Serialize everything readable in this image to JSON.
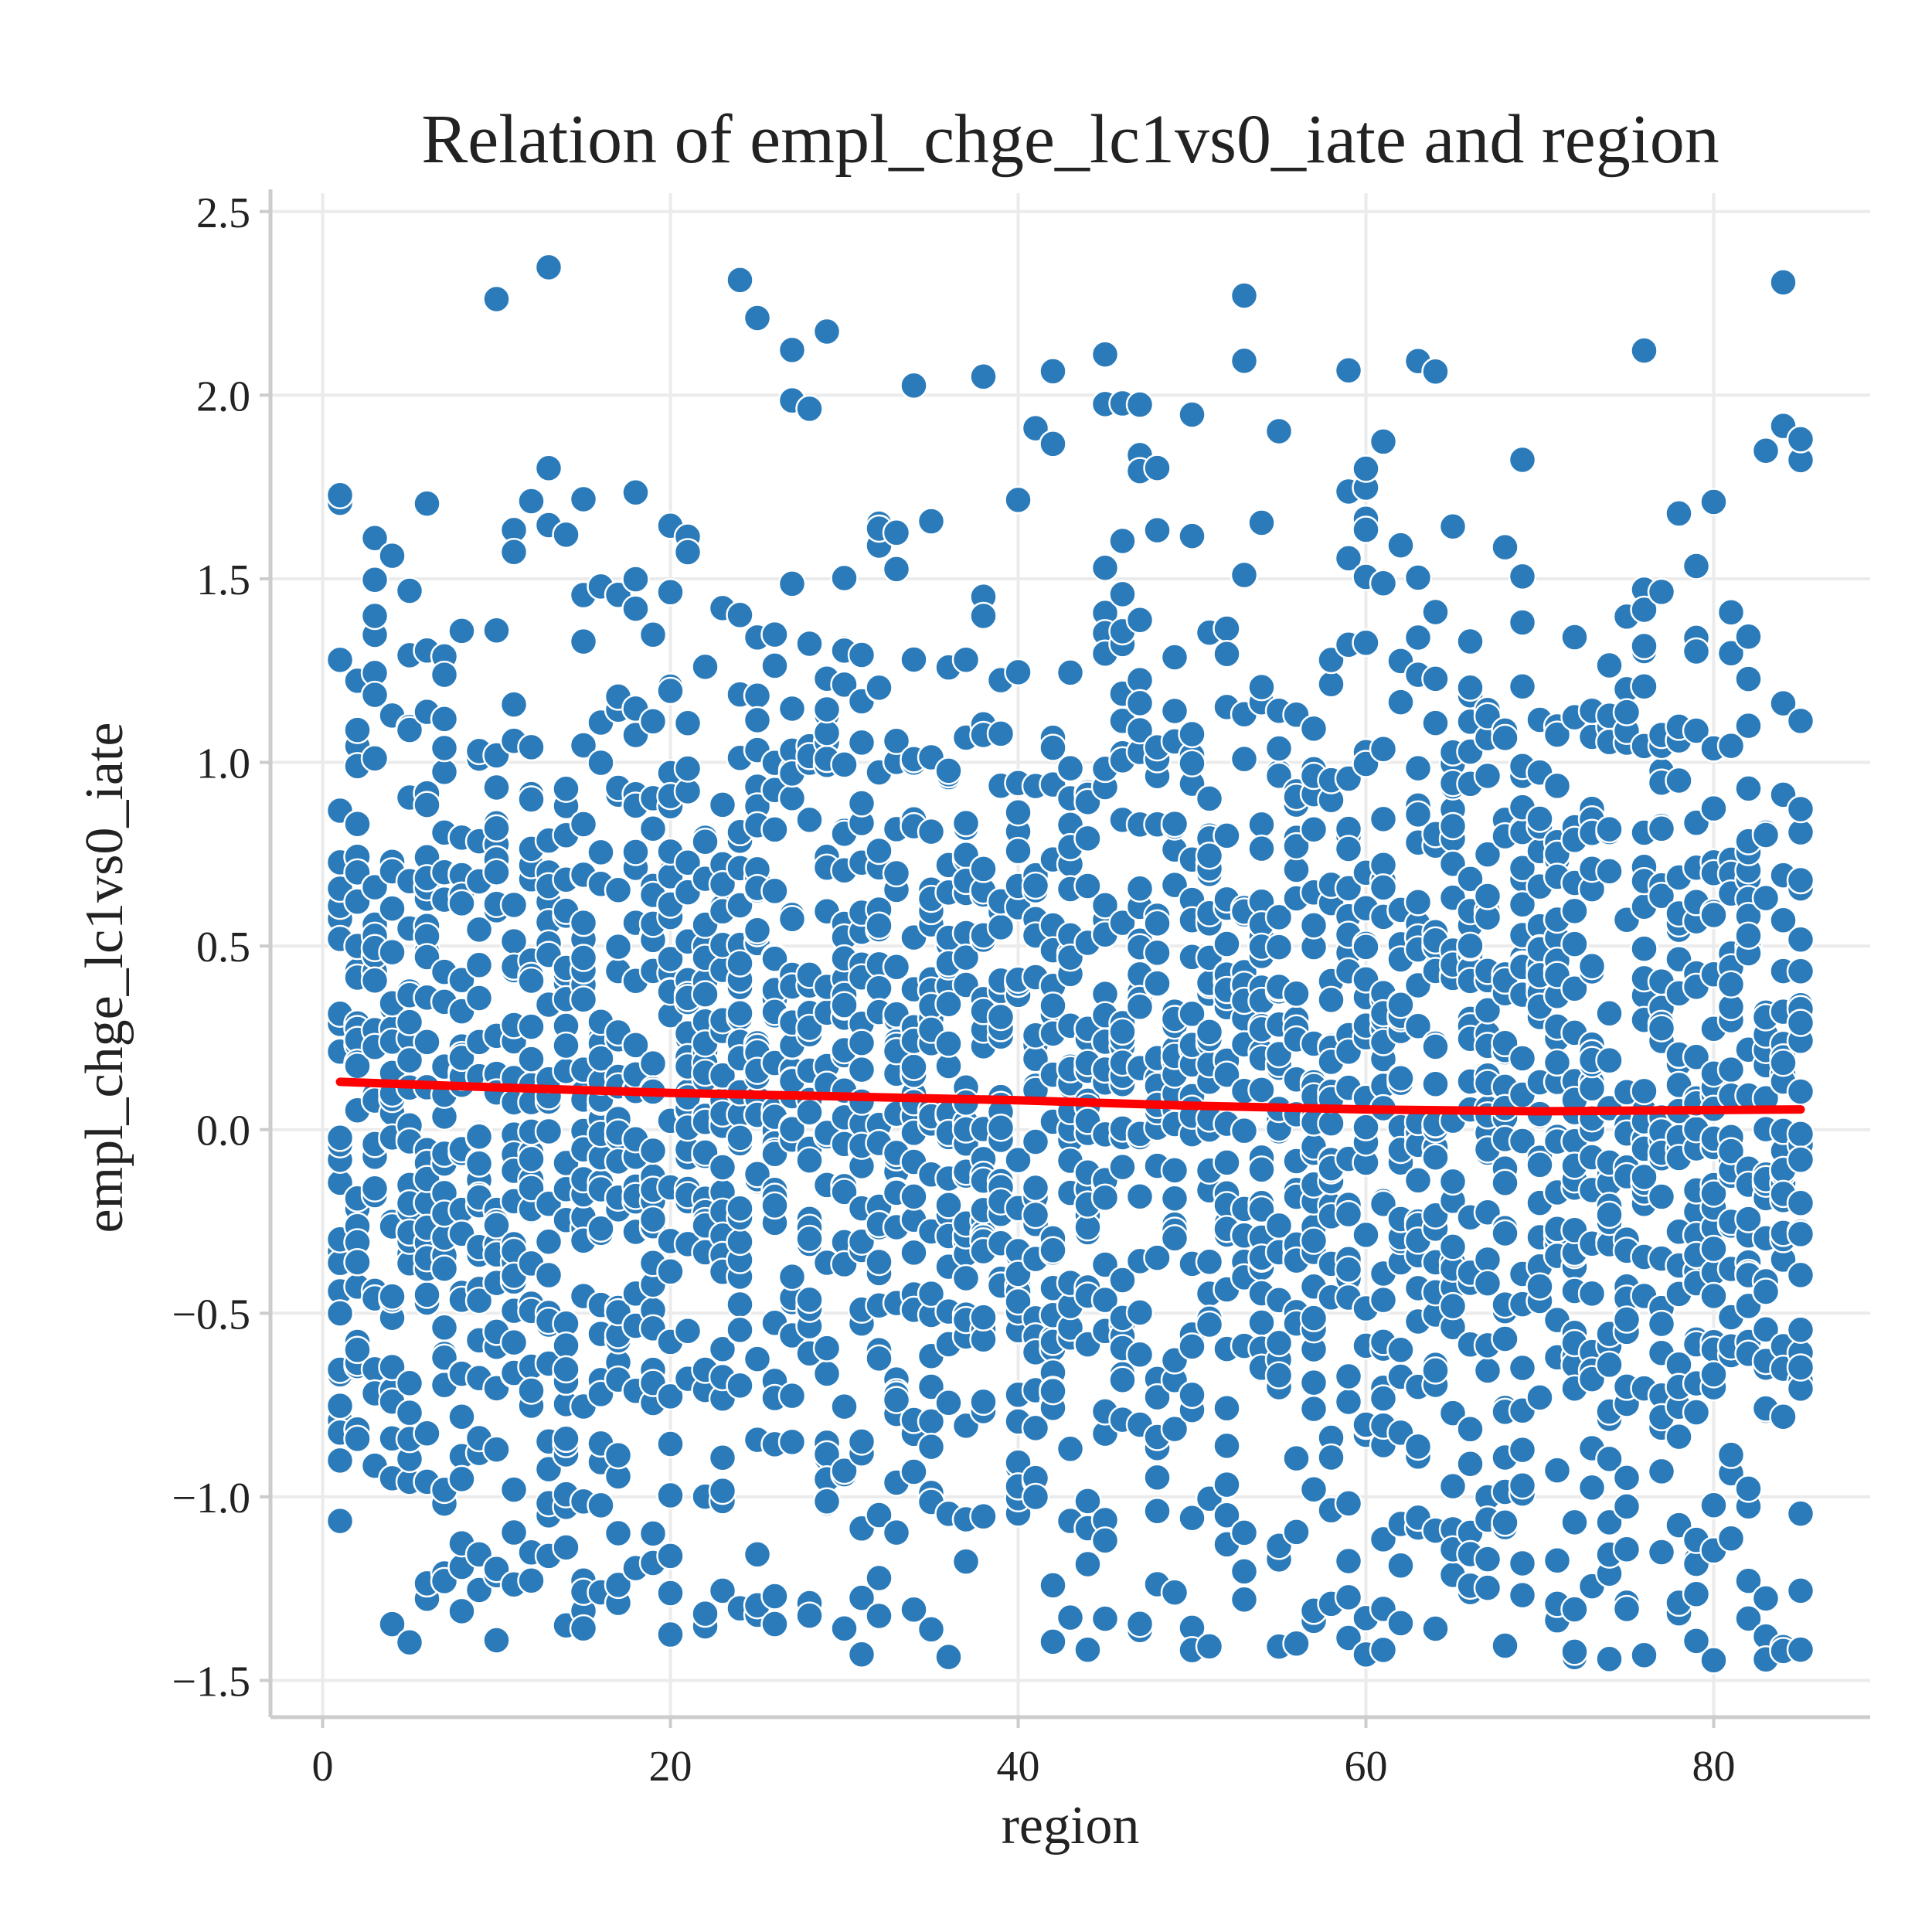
{
  "chart_data": {
    "type": "scatter",
    "title": "Relation of empl_chge_lc1vs0_iate and region",
    "xlabel": "region",
    "ylabel": "empl_chge_lc1vs0_iate",
    "xlim": [
      -3,
      89
    ],
    "ylim": [
      -1.6,
      2.55
    ],
    "xticks": [
      0,
      20,
      40,
      60,
      80
    ],
    "yticks": [
      -1.5,
      -1.0,
      -0.5,
      0.0,
      0.5,
      1.0,
      1.5,
      2.0,
      2.5
    ],
    "xtick_labels": [
      "0",
      "20",
      "40",
      "60",
      "80"
    ],
    "ytick_labels": [
      "−1.5",
      "−1.0",
      "−0.5",
      "0.0",
      "0.5",
      "1.0",
      "1.5",
      "2.0",
      "2.5"
    ],
    "grid": true,
    "region_range": [
      1,
      85
    ],
    "points_per_region": 30,
    "trend_line": {
      "x": [
        1,
        10,
        20,
        30,
        40,
        50,
        60,
        70,
        85
      ],
      "y": [
        0.13,
        0.115,
        0.1,
        0.09,
        0.08,
        0.065,
        0.055,
        0.05,
        0.055
      ]
    },
    "colors": {
      "points": "#2b7bba",
      "trend_line": "#ff0000"
    }
  }
}
